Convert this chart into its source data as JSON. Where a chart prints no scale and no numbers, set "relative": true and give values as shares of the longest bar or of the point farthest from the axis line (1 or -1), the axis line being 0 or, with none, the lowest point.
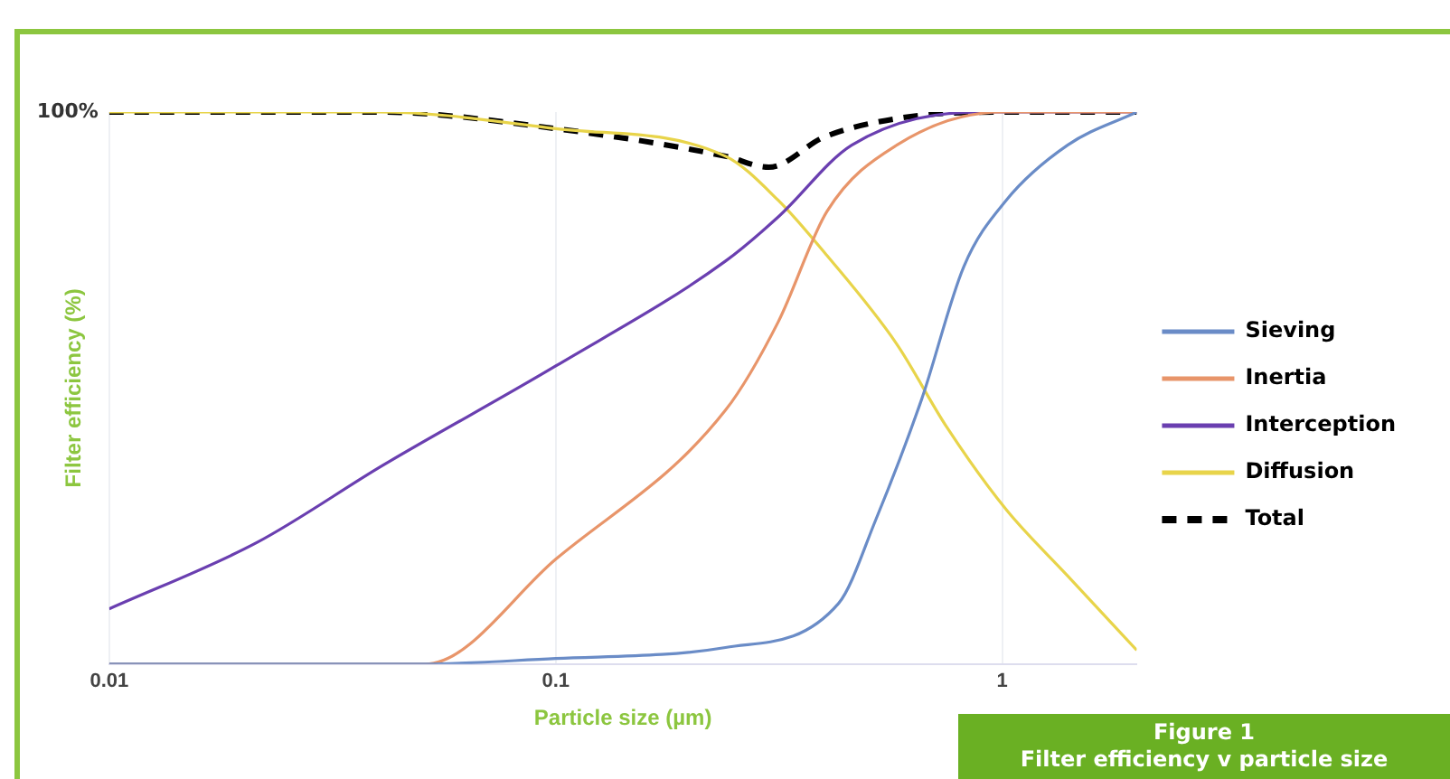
{
  "chart_data": {
    "type": "line",
    "xlabel": "Particle size (µm)",
    "ylabel": "Filter efficiency (%)",
    "relative": true,
    "log": "x",
    "xlim": [
      0.01,
      2
    ],
    "xticks": [
      0.01,
      0.1,
      1
    ],
    "grid": "x",
    "legend": "right",
    "marker": "none",
    "annotations": [
      {
        "text": "100%",
        "x": 0.01,
        "y": 1
      },
      "Figure 1",
      "Filter efficiency v particle size"
    ],
    "series": [
      {
        "name": "Sieving",
        "color": "#6a8cc7",
        "x": [
          0.01,
          0.05,
          0.1,
          0.24,
          0.43,
          0.52,
          0.66,
          0.82,
          1.02,
          1.4,
          2
        ],
        "values": [
          0,
          0,
          0.01,
          0.03,
          0.11,
          0.26,
          0.48,
          0.72,
          0.84,
          0.94,
          1
        ]
      },
      {
        "name": "Inertia",
        "color": "#e8956a",
        "x": [
          0.01,
          0.051,
          0.1,
          0.24,
          0.315,
          0.405,
          0.58,
          1,
          2
        ],
        "values": [
          0,
          0,
          0.19,
          0.46,
          0.62,
          0.82,
          0.94,
          1,
          1
        ]
      },
      {
        "name": "Interception",
        "color": "#6a3fb0",
        "x": [
          0.01,
          0.0214,
          0.041,
          0.1,
          0.24,
          0.315,
          0.46,
          0.9,
          2
        ],
        "values": [
          0.1,
          0.22,
          0.36,
          0.54,
          0.73,
          0.81,
          0.94,
          1,
          1
        ]
      },
      {
        "name": "Diffusion",
        "color": "#e8d44a",
        "x": [
          0.01,
          0.04,
          0.1,
          0.24,
          0.315,
          0.405,
          0.58,
          0.75,
          1.02,
          1.4,
          2
        ],
        "values": [
          1,
          1,
          0.97,
          0.92,
          0.84,
          0.74,
          0.58,
          0.43,
          0.28,
          0.16,
          0.025
        ]
      },
      {
        "name": "Total",
        "color": "#000000",
        "line_style": "dashed",
        "x": [
          0.01,
          0.04,
          0.1,
          0.24,
          0.3,
          0.4,
          0.6,
          1,
          2
        ],
        "values": [
          1,
          1,
          0.97,
          0.92,
          0.9,
          0.955,
          0.99,
          1,
          1
        ]
      }
    ]
  }
}
